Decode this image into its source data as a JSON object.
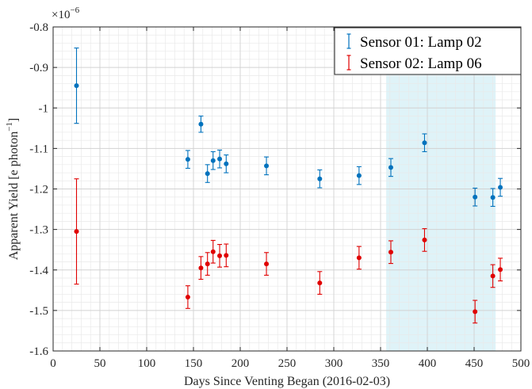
{
  "chart_data": {
    "type": "scatter",
    "title": "",
    "xlabel": "Days Since Venting Began (2016-02-03)",
    "ylabel_main": "Apparent Yield [e photon",
    "ylabel_sup": "−1",
    "ylabel_close": "]",
    "exponent_base": "×10",
    "exponent_power": "−6",
    "xlim": [
      0,
      500
    ],
    "ylim": [
      -1.6,
      -0.8
    ],
    "x_ticks": [
      0,
      50,
      100,
      150,
      200,
      250,
      300,
      350,
      400,
      450,
      500
    ],
    "y_ticks": [
      -1.6,
      -1.5,
      -1.4,
      -1.3,
      -1.2,
      -1.1,
      -1,
      -0.9,
      -0.8
    ],
    "x_tick_labels": [
      "0",
      "50",
      "100",
      "150",
      "200",
      "250",
      "300",
      "350",
      "400",
      "450",
      "500"
    ],
    "y_tick_labels": [
      "-1.6",
      "-1.5",
      "-1.4",
      "-1.3",
      "-1.2",
      "-1.1",
      "-1",
      "-0.9",
      "-0.8"
    ],
    "grid": true,
    "minor_grid": true,
    "legend_position": "top-right",
    "shaded_region": {
      "x": [
        356,
        473
      ],
      "color": "#dff3f8"
    },
    "series": [
      {
        "name": "Sensor 01: Lamp 02",
        "color": "#0072bd",
        "x": [
          25,
          144,
          158,
          165,
          171,
          178,
          185,
          228,
          285,
          327,
          361,
          397,
          451,
          470,
          478
        ],
        "y": [
          -0.945,
          -1.127,
          -1.04,
          -1.162,
          -1.13,
          -1.126,
          -1.138,
          -1.143,
          -1.175,
          -1.167,
          -1.147,
          -1.086,
          -1.22,
          -1.221,
          -1.196
        ],
        "err": [
          0.093,
          0.022,
          0.02,
          0.022,
          0.022,
          0.022,
          0.022,
          0.022,
          0.022,
          0.022,
          0.022,
          0.022,
          0.022,
          0.022,
          0.022
        ]
      },
      {
        "name": "Sensor 02: Lamp 06",
        "color": "#e00000",
        "x": [
          25,
          144,
          158,
          165,
          171,
          178,
          185,
          228,
          285,
          327,
          361,
          397,
          451,
          470,
          478
        ],
        "y": [
          -1.305,
          -1.467,
          -1.395,
          -1.385,
          -1.355,
          -1.365,
          -1.364,
          -1.385,
          -1.432,
          -1.37,
          -1.356,
          -1.326,
          -1.503,
          -1.415,
          -1.399
        ],
        "err": [
          0.13,
          0.028,
          0.028,
          0.028,
          0.028,
          0.028,
          0.028,
          0.028,
          0.028,
          0.028,
          0.028,
          0.028,
          0.028,
          0.028,
          0.028
        ]
      }
    ]
  }
}
